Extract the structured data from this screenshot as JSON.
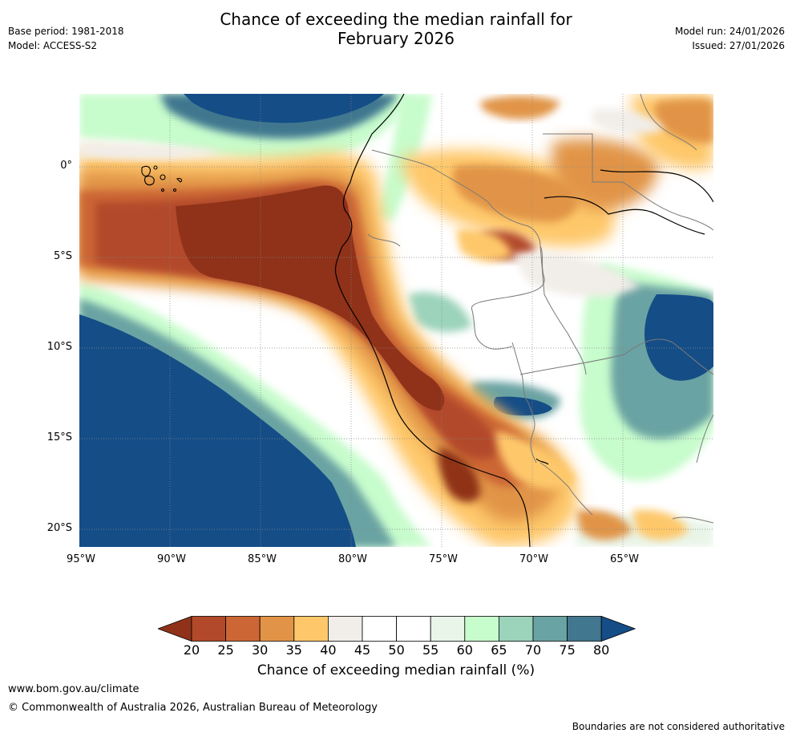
{
  "title_line1": "Chance of exceeding the median rainfall for",
  "title_line2": "February 2026",
  "base_period": "Base period: 1981-2018",
  "model": "Model: ACCESS-S2",
  "model_run": "Model run: 24/01/2026",
  "issued": "Issued: 27/01/2026",
  "map": {
    "lat_labels": [
      "0°",
      "5°S",
      "10°S",
      "15°S",
      "20°S"
    ],
    "lon_labels": [
      "95°W",
      "90°W",
      "85°W",
      "80°W",
      "75°W",
      "70°W",
      "65°W"
    ]
  },
  "colorbar": {
    "ticks": [
      "20",
      "25",
      "30",
      "35",
      "40",
      "45",
      "50",
      "55",
      "60",
      "65",
      "70",
      "75",
      "80"
    ],
    "colors": [
      "#8f3219",
      "#b2492a",
      "#cc6634",
      "#e19447",
      "#fec86a",
      "#f1ede8",
      "#ffffff",
      "#ffffff",
      "#e9f5e9",
      "#c7fccc",
      "#9bd3bb",
      "#6aa3a3",
      "#41778f",
      "#154d87"
    ],
    "title": "Chance of exceeding median rainfall (%)"
  },
  "website": "www.bom.gov.au/climate",
  "copyright": "© Commonwealth of Australia 2026, Australian Bureau of Meteorology",
  "disclaimer": "Boundaries are not considered authoritative"
}
